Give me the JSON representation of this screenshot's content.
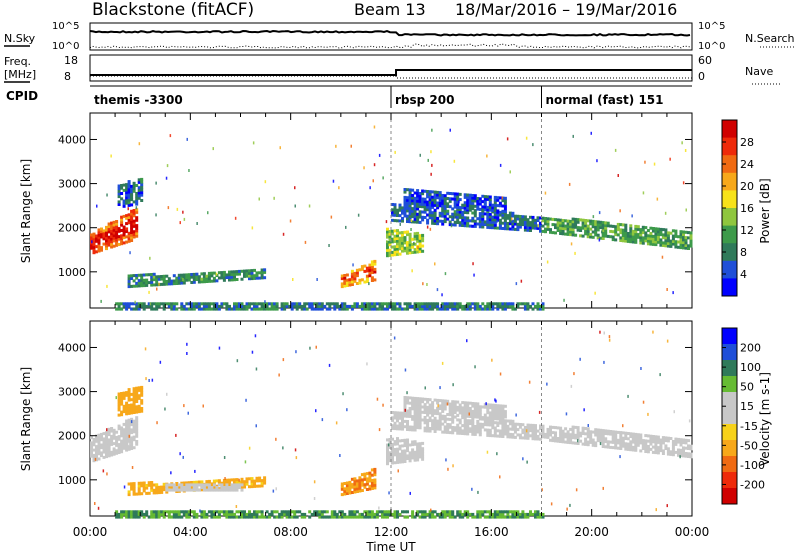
{
  "header": {
    "station": "Blackstone (fitACF)",
    "beam": "Beam 13",
    "date_range": "18/Mar/2016 – 19/Mar/2016"
  },
  "noise_panel": {
    "left_label": "N.Sky",
    "right_label": "N.Search",
    "left_ticks": [
      "10^5",
      "10^0"
    ],
    "right_ticks": [
      "10^5",
      "10^0"
    ]
  },
  "freq_panel": {
    "left_label": "Freq.",
    "left_unit": "[MHz]",
    "right_label": "Nave",
    "left_ticks": [
      "18",
      "8"
    ],
    "right_ticks": [
      "60",
      "0"
    ],
    "step_times_hours": [
      0,
      12.2,
      24
    ],
    "freq_levels": [
      10.5,
      13.0
    ]
  },
  "cpid_panel": {
    "label": "CPID",
    "modes": [
      {
        "name": "themis -3300",
        "start_hour": 0
      },
      {
        "name": "rbsp 200",
        "start_hour": 12.0
      },
      {
        "name": "normal (fast) 151",
        "start_hour": 18.0
      }
    ]
  },
  "colors": {
    "power_scale": [
      "#0000ff",
      "#1f4fd8",
      "#2f7a5a",
      "#3d9a4a",
      "#8fc63e",
      "#f7e21a",
      "#f7a81a",
      "#f06a12",
      "#ee2a0a",
      "#d00000"
    ],
    "velocity_scale": [
      "#0000ff",
      "#1f4fd8",
      "#2f7a5a",
      "#66bb33",
      "#c8c8c8",
      "#c8c8c8",
      "#f7d21a",
      "#f7a81a",
      "#f06a12",
      "#ee2a0a",
      "#d00000"
    ],
    "ground_green": "#66bb33"
  },
  "chart_data": [
    {
      "type": "heatmap",
      "name": "power",
      "ylabel": "Slant Range [km]",
      "colorbar_label": "Power [dB]",
      "colorbar_ticks": [
        4,
        8,
        12,
        16,
        20,
        24,
        28
      ],
      "colorbar_range": [
        0,
        32
      ],
      "ylim": [
        180,
        4600
      ],
      "yticks": [
        1000,
        2000,
        3000,
        4000
      ],
      "xlim": [
        0,
        24
      ],
      "features": [
        {
          "t0": 0.0,
          "t1": 1.9,
          "r0": 1450,
          "r1": 1900,
          "r0_end": 1800,
          "r1_end": 2500,
          "level": 24
        },
        {
          "t0": 1.1,
          "t1": 2.1,
          "r0": 2500,
          "r1": 3000,
          "r0_end": 2600,
          "r1_end": 3200,
          "level": 6
        },
        {
          "t0": 1.5,
          "t1": 6.9,
          "r0": 700,
          "r1": 950,
          "r0_end": 900,
          "r1_end": 1100,
          "level": 9
        },
        {
          "t0": 10.0,
          "t1": 11.3,
          "r0": 700,
          "r1": 950,
          "r0_end": 850,
          "r1_end": 1300,
          "level": 20
        },
        {
          "t0": 11.8,
          "t1": 13.2,
          "r0": 1400,
          "r1": 2000,
          "r0_end": 1500,
          "r1_end": 1900,
          "level": 14
        },
        {
          "t0": 12.0,
          "t1": 18.0,
          "r0": 2200,
          "r1": 2600,
          "r0_end": 1950,
          "r1_end": 2300,
          "level": 6
        },
        {
          "t0": 12.5,
          "t1": 16.5,
          "r0": 2600,
          "r1": 2900,
          "r0_end": 2400,
          "r1_end": 2700,
          "level": 5
        },
        {
          "t0": 18.0,
          "t1": 24.0,
          "r0": 1950,
          "r1": 2300,
          "r0_end": 1550,
          "r1_end": 1950,
          "level": 11
        },
        {
          "t0": 1.0,
          "t1": 18.0,
          "r0": 190,
          "r1": 360,
          "r0_end": 190,
          "r1_end": 360,
          "level": 8
        }
      ]
    },
    {
      "type": "heatmap",
      "name": "velocity",
      "ylabel": "Slant Range [km]",
      "xlabel": "Time UT",
      "colorbar_label": "Velocity [m s-1]",
      "colorbar_ticks": [
        200,
        100,
        50,
        15,
        -15,
        -50,
        -100,
        -200
      ],
      "colorbar_range": [
        -250,
        250
      ],
      "ylim": [
        180,
        4600
      ],
      "yticks": [
        1000,
        2000,
        3000,
        4000
      ],
      "xlim": [
        0,
        24
      ],
      "xticks": [
        "00:00",
        "04:00",
        "08:00",
        "12:00",
        "16:00",
        "20:00",
        "00:00"
      ],
      "features": [
        {
          "t0": 0.0,
          "t1": 1.9,
          "r0": 1450,
          "r1": 2000,
          "r0_end": 1800,
          "r1_end": 2500,
          "level": 0
        },
        {
          "t0": 1.1,
          "t1": 2.1,
          "r0": 2500,
          "r1": 3000,
          "r0_end": 2600,
          "r1_end": 3200,
          "level": -60
        },
        {
          "t0": 1.5,
          "t1": 6.9,
          "r0": 700,
          "r1": 950,
          "r0_end": 900,
          "r1_end": 1100,
          "level": -40
        },
        {
          "t0": 3.0,
          "t1": 6.0,
          "r0": 800,
          "r1": 950,
          "r0_end": 800,
          "r1_end": 950,
          "level": 0
        },
        {
          "t0": 10.0,
          "t1": 11.3,
          "r0": 700,
          "r1": 950,
          "r0_end": 850,
          "r1_end": 1300,
          "level": -70
        },
        {
          "t0": 11.8,
          "t1": 13.2,
          "r0": 1400,
          "r1": 2000,
          "r0_end": 1500,
          "r1_end": 1900,
          "level": 0
        },
        {
          "t0": 12.0,
          "t1": 18.0,
          "r0": 2200,
          "r1": 2600,
          "r0_end": 1950,
          "r1_end": 2300,
          "level": 0
        },
        {
          "t0": 12.5,
          "t1": 16.5,
          "r0": 2600,
          "r1": 2900,
          "r0_end": 2400,
          "r1_end": 2700,
          "level": 0
        },
        {
          "t0": 18.0,
          "t1": 24.0,
          "r0": 1950,
          "r1": 2300,
          "r0_end": 1550,
          "r1_end": 1950,
          "level": 0
        },
        {
          "t0": 1.0,
          "t1": 18.0,
          "r0": 190,
          "r1": 360,
          "r0_end": 190,
          "r1_end": 360,
          "level": 30
        }
      ]
    }
  ]
}
